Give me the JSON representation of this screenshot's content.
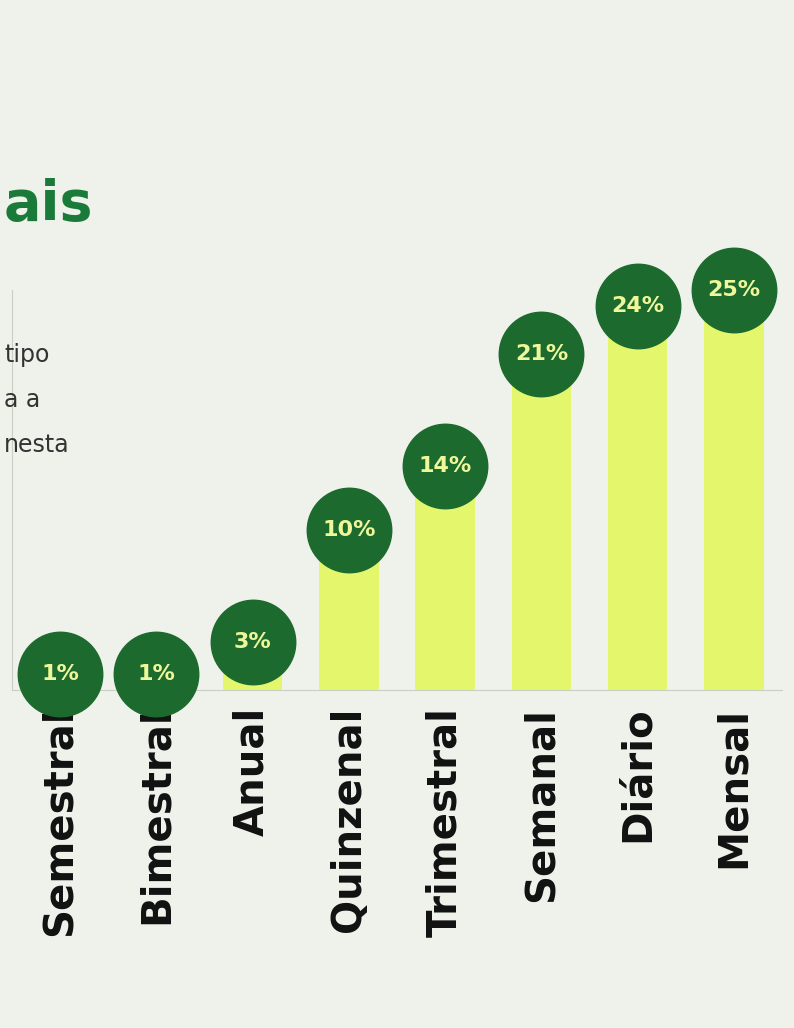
{
  "chart_data": {
    "type": "bar",
    "title": "ais",
    "annotations": [
      "tipo",
      "a a",
      "nesta"
    ],
    "categories": [
      "Semestral",
      "Bimestral",
      "Anual",
      "Quinzenal",
      "Trimestral",
      "Semanal",
      "Diário",
      "Mensal"
    ],
    "values": [
      1,
      1,
      3,
      10,
      14,
      21,
      24,
      25
    ],
    "value_labels": [
      "1%",
      "1%",
      "3%",
      "10%",
      "14%",
      "21%",
      "24%",
      "25%"
    ],
    "color": "#e4f76c",
    "ylim": [
      0,
      25
    ],
    "grid": false,
    "data_labels": true,
    "tick_labels": "x"
  }
}
